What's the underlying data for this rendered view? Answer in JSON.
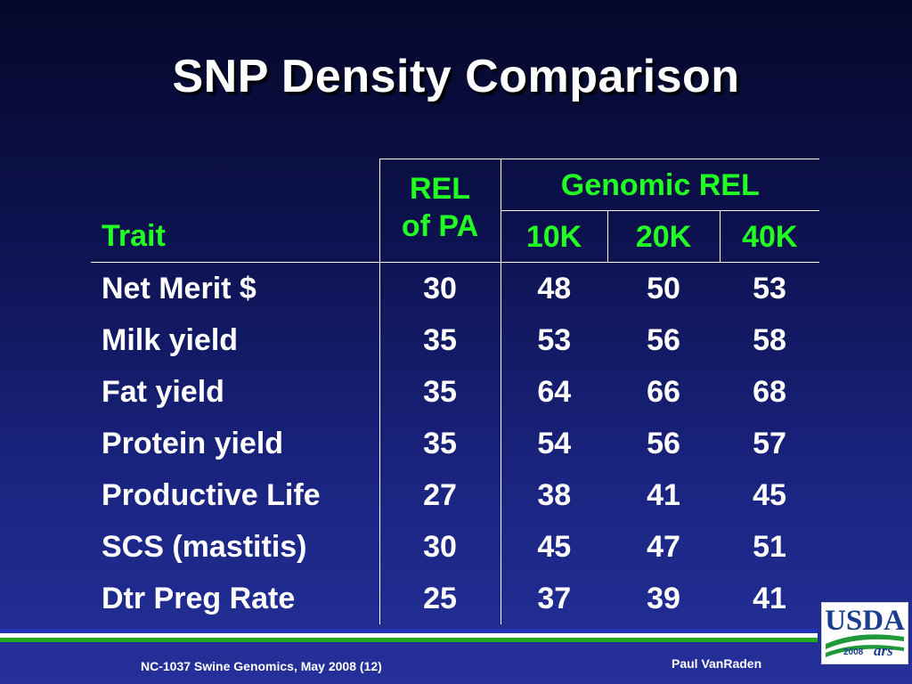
{
  "title": "SNP Density Comparison",
  "table": {
    "trait_header": "Trait",
    "rel_header_line1": "REL",
    "rel_header_line2": "of PA",
    "genomic_header": "Genomic REL",
    "subheaders": [
      "10K",
      "20K",
      "40K"
    ],
    "rows": [
      {
        "trait": "Net Merit $",
        "rel_pa": "30",
        "k10": "48",
        "k20": "50",
        "k40": "53"
      },
      {
        "trait": "Milk yield",
        "rel_pa": "35",
        "k10": "53",
        "k20": "56",
        "k40": "58"
      },
      {
        "trait": "Fat yield",
        "rel_pa": "35",
        "k10": "64",
        "k20": "66",
        "k40": "68"
      },
      {
        "trait": "Protein yield",
        "rel_pa": "35",
        "k10": "54",
        "k20": "56",
        "k40": "57"
      },
      {
        "trait": "Productive Life",
        "rel_pa": "27",
        "k10": "38",
        "k20": "41",
        "k40": "45"
      },
      {
        "trait": "SCS (mastitis)",
        "rel_pa": "30",
        "k10": "45",
        "k20": "47",
        "k40": "51"
      },
      {
        "trait": "Dtr Preg Rate",
        "rel_pa": "25",
        "k10": "37",
        "k20": "39",
        "k40": "41"
      }
    ]
  },
  "footer": {
    "left": "NC-1037 Swine Genomics, May 2008 (12)",
    "right": "Paul VanRaden"
  },
  "logo": {
    "text": "USDA",
    "year": "2008",
    "mark": "ars"
  },
  "colors": {
    "header_text": "#22ff22",
    "stripe_blue": "#2233bb",
    "stripe_white": "#ffffff",
    "stripe_green": "#22aa22",
    "logo_blue": "#1b3d8f"
  }
}
